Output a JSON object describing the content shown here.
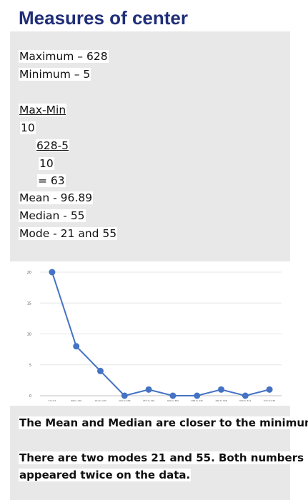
{
  "title": "Measures of center",
  "stats": {
    "maximum": "Maximum – 628",
    "minimum": "Minimum – 5",
    "formula_numerator": "Max-Min",
    "formula_denominator": "10",
    "calc_numerator": "628-5",
    "calc_denominator": "10",
    "calc_result": "= 63",
    "mean": "Mean - 96.89",
    "median": "Median - 55",
    "mode": "Mode - 21 and 55"
  },
  "chart_data": {
    "type": "line",
    "categories": [
      "5 to 67",
      "68 to 130",
      "131 to 193",
      "194 to 256",
      "257 to 319",
      "320 to 382",
      "383 to 445",
      "446 to 508",
      "509 to 571",
      "572 to 634"
    ],
    "values": [
      20,
      8,
      4,
      0,
      1,
      0,
      0,
      1,
      0,
      1
    ],
    "yticks": [
      0,
      5,
      10,
      15,
      20
    ],
    "ylim": [
      0,
      20
    ],
    "grid": true,
    "line_color": "#4472c4"
  },
  "conclusion": {
    "line1": "The Mean and Median are closer to the minimum.",
    "line2": "There are two modes 21 and 55. Both numbers",
    "line3": "appeared twice on the data."
  }
}
